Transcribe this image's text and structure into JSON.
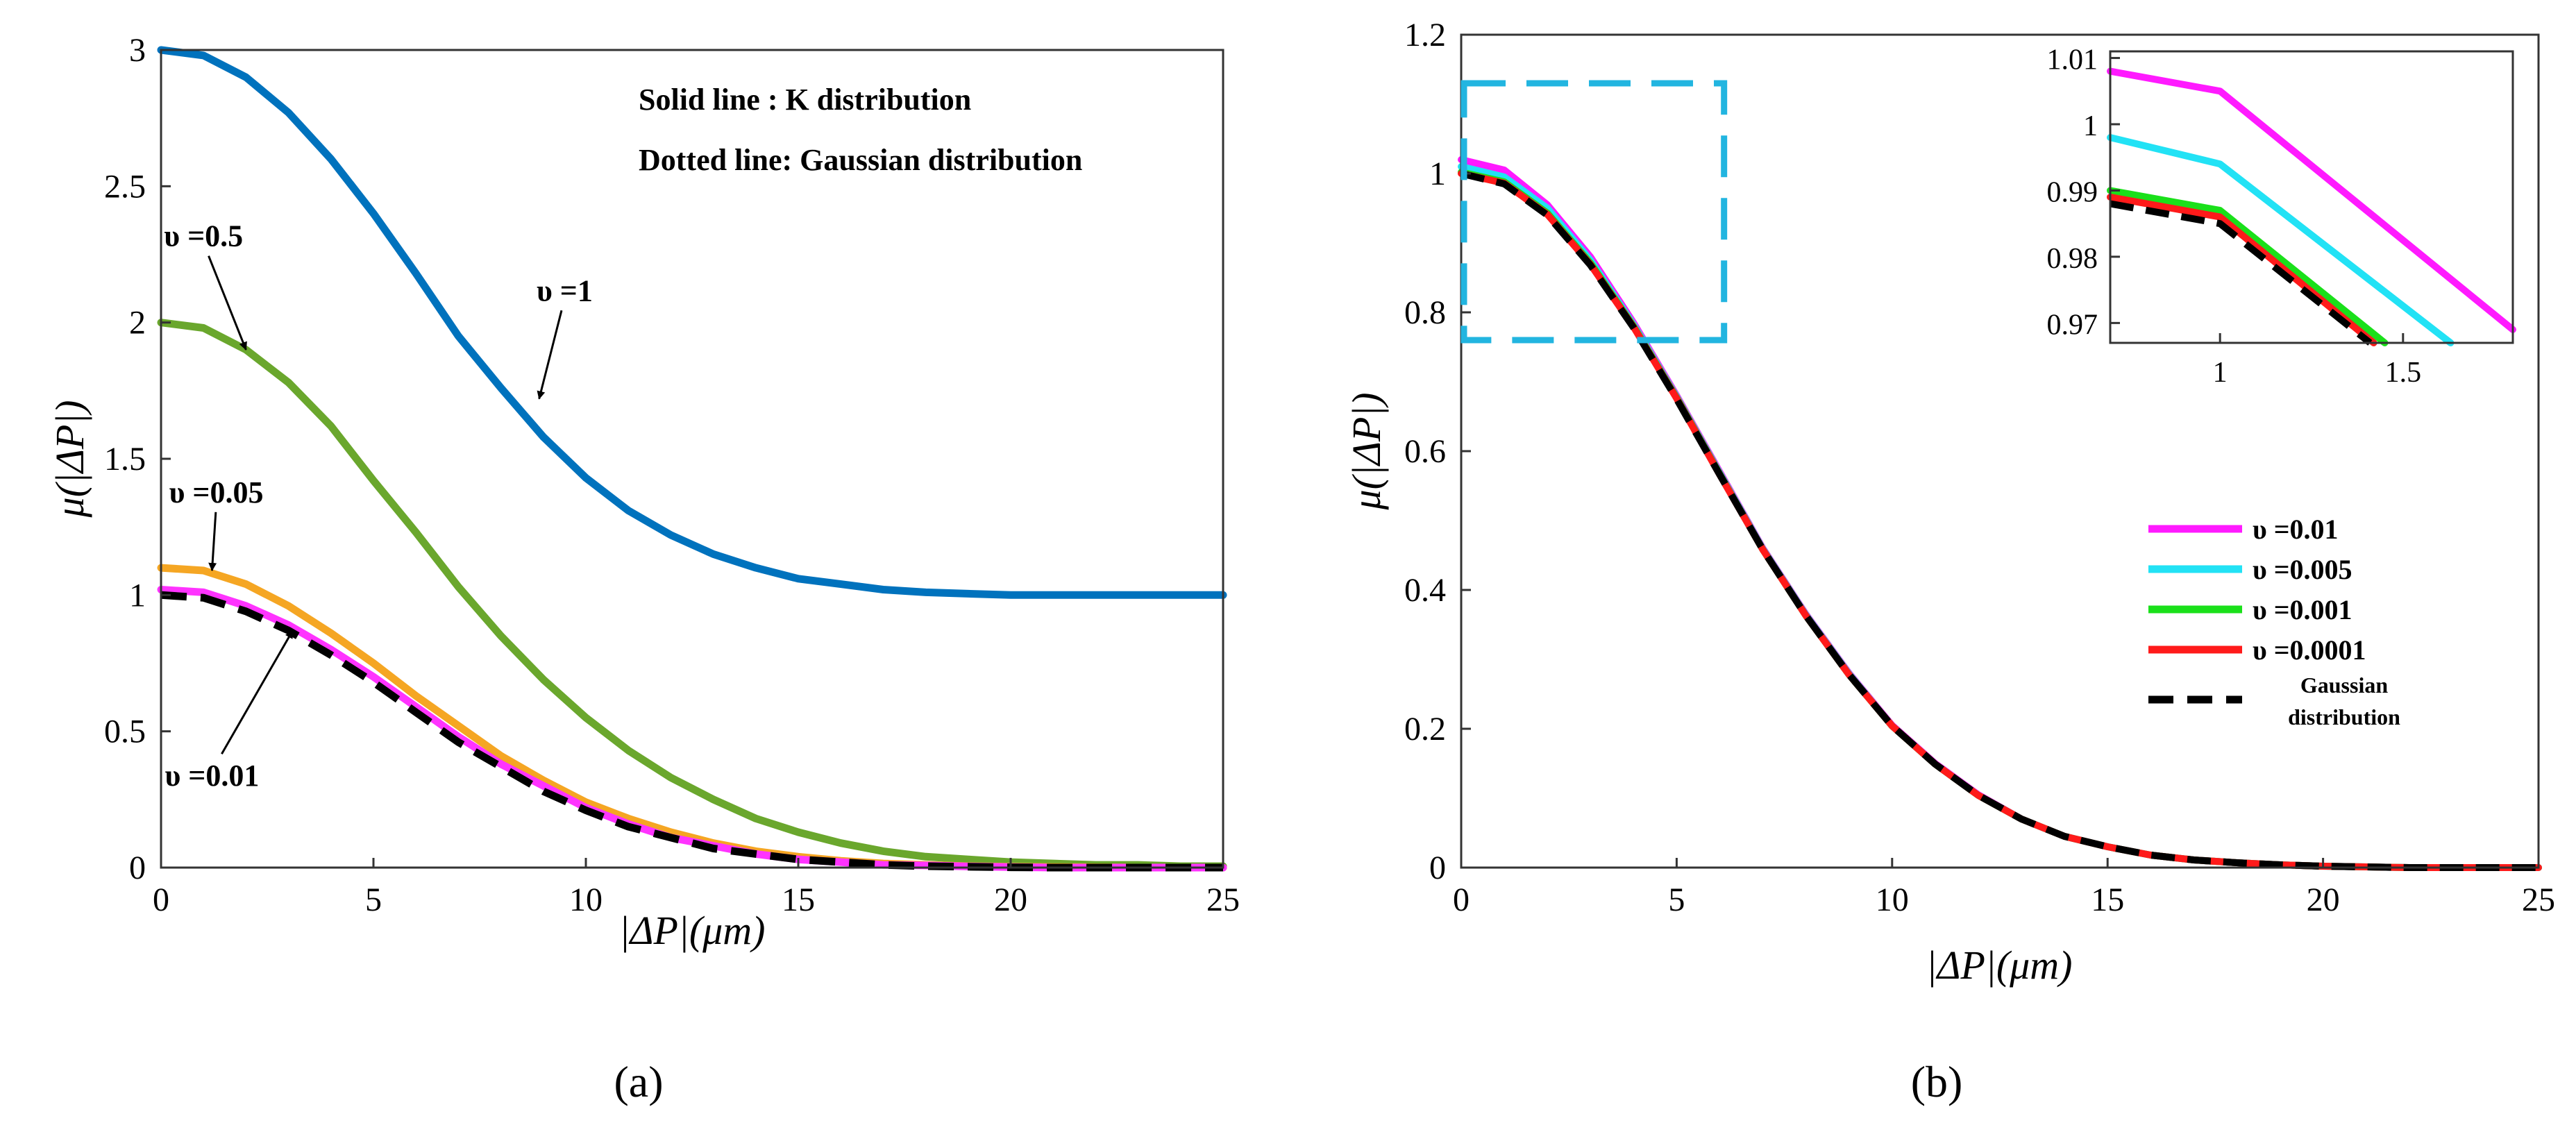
{
  "panel_labels": {
    "a": "(a)",
    "b": "(b)"
  },
  "colors": {
    "nu1": "#0072BD",
    "nu05": "#6AA72D",
    "nu005": "#F5A623",
    "nu001a": "#FF33FF",
    "gauss": "#000000",
    "m001": "#FF1AFF",
    "m0005": "#22E2F5",
    "m0001": "#1AE01A",
    "m00001": "#FF1A1A",
    "zoombox": "#22B5E0"
  },
  "chart_data": [
    {
      "id": "a",
      "type": "line",
      "title": "",
      "xlabel": "|ΔP|(μm)",
      "ylabel": "μ(|ΔP|)",
      "xlim": [
        0,
        25
      ],
      "ylim": [
        0,
        3
      ],
      "xticks": [
        0,
        5,
        10,
        15,
        20,
        25
      ],
      "yticks": [
        0,
        0.5,
        1,
        1.5,
        2,
        2.5,
        3
      ],
      "ytick_labels": [
        "0",
        "0.5",
        "1",
        "1.5",
        "2",
        "2.5",
        "3"
      ],
      "notes": [
        "Solid line : K distribution",
        "Dotted line: Gaussian distribution"
      ],
      "annotations": [
        {
          "text": "υ =1",
          "x": 9.5,
          "y": 2.08,
          "arrow_to": [
            8.9,
            1.72
          ]
        },
        {
          "text": "υ =0.5",
          "x": 1.0,
          "y": 2.28,
          "arrow_to": [
            2.0,
            1.9
          ]
        },
        {
          "text": "υ =0.05",
          "x": 1.3,
          "y": 1.34,
          "arrow_to": [
            1.2,
            1.09
          ]
        },
        {
          "text": "υ =0.01",
          "x": 1.2,
          "y": 0.3,
          "arrow_to": [
            3.1,
            0.87
          ]
        }
      ],
      "series": [
        {
          "name": "υ=1",
          "color_key": "nu1",
          "dashed": false,
          "x": [
            0,
            1,
            2,
            3,
            4,
            5,
            6,
            7,
            8,
            9,
            10,
            11,
            12,
            13,
            14,
            15,
            16,
            17,
            18,
            19,
            20,
            21,
            22,
            23,
            24,
            25
          ],
          "y": [
            3.0,
            2.98,
            2.9,
            2.77,
            2.6,
            2.4,
            2.18,
            1.95,
            1.76,
            1.58,
            1.43,
            1.31,
            1.22,
            1.15,
            1.1,
            1.06,
            1.04,
            1.02,
            1.01,
            1.005,
            1.0,
            1.0,
            1.0,
            1.0,
            1.0,
            1.0
          ]
        },
        {
          "name": "υ=0.5",
          "color_key": "nu05",
          "dashed": false,
          "x": [
            0,
            1,
            2,
            3,
            4,
            5,
            6,
            7,
            8,
            9,
            10,
            11,
            12,
            13,
            14,
            15,
            16,
            17,
            18,
            19,
            20,
            21,
            22,
            23,
            24,
            25
          ],
          "y": [
            2.0,
            1.98,
            1.9,
            1.78,
            1.62,
            1.42,
            1.23,
            1.03,
            0.85,
            0.69,
            0.55,
            0.43,
            0.33,
            0.25,
            0.18,
            0.13,
            0.09,
            0.06,
            0.04,
            0.03,
            0.02,
            0.015,
            0.01,
            0.01,
            0.005,
            0.005
          ]
        },
        {
          "name": "υ=0.05",
          "color_key": "nu005",
          "dashed": false,
          "x": [
            0,
            1,
            2,
            3,
            4,
            5,
            6,
            7,
            8,
            9,
            10,
            11,
            12,
            13,
            14,
            15,
            16,
            17,
            18,
            19,
            20,
            21,
            22,
            23,
            24,
            25
          ],
          "y": [
            1.1,
            1.09,
            1.04,
            0.96,
            0.86,
            0.75,
            0.63,
            0.52,
            0.41,
            0.32,
            0.24,
            0.18,
            0.13,
            0.09,
            0.06,
            0.04,
            0.025,
            0.015,
            0.01,
            0.005,
            0.003,
            0.002,
            0.001,
            0.0,
            0.0,
            0.0
          ]
        },
        {
          "name": "υ=0.01",
          "color_key": "nu001a",
          "dashed": false,
          "x": [
            0,
            1,
            2,
            3,
            4,
            5,
            6,
            7,
            8,
            9,
            10,
            11,
            12,
            13,
            14,
            15,
            16,
            17,
            18,
            19,
            20,
            21,
            22,
            23,
            24,
            25
          ],
          "y": [
            1.02,
            1.01,
            0.96,
            0.89,
            0.8,
            0.7,
            0.59,
            0.48,
            0.38,
            0.3,
            0.22,
            0.16,
            0.11,
            0.08,
            0.05,
            0.03,
            0.02,
            0.01,
            0.008,
            0.004,
            0.002,
            0.0,
            0.0,
            0.0,
            0.0,
            0.0
          ]
        },
        {
          "name": "Gaussian",
          "color_key": "gauss",
          "dashed": true,
          "x": [
            0,
            1,
            2,
            3,
            4,
            5,
            6,
            7,
            8,
            9,
            10,
            11,
            12,
            13,
            14,
            15,
            16,
            17,
            18,
            19,
            20,
            21,
            22,
            23,
            24,
            25
          ],
          "y": [
            1.0,
            0.99,
            0.94,
            0.87,
            0.78,
            0.68,
            0.57,
            0.46,
            0.37,
            0.28,
            0.21,
            0.15,
            0.11,
            0.07,
            0.05,
            0.03,
            0.02,
            0.01,
            0.005,
            0.003,
            0.001,
            0.0,
            0.0,
            0.0,
            0.0,
            0.0
          ]
        }
      ]
    },
    {
      "id": "b",
      "type": "line",
      "title": "",
      "xlabel": "|ΔP|(μm)",
      "ylabel": "μ(|ΔP|)",
      "xlim": [
        0,
        25
      ],
      "ylim": [
        0,
        1.2
      ],
      "xticks": [
        0,
        5,
        10,
        15,
        20,
        25
      ],
      "yticks": [
        0,
        0.2,
        0.4,
        0.6,
        0.8,
        1,
        1.2
      ],
      "ytick_labels": [
        "0",
        "0.2",
        "0.4",
        "0.6",
        "0.8",
        "1",
        "1.2"
      ],
      "zoom_box": {
        "x": [
          0,
          6.1
        ],
        "y": [
          0.76,
          1.13
        ]
      },
      "legend": [
        {
          "label": "υ =0.01",
          "color_key": "m001",
          "dashed": false
        },
        {
          "label": "υ =0.005",
          "color_key": "m0005",
          "dashed": false
        },
        {
          "label": "υ =0.001",
          "color_key": "m0001",
          "dashed": false
        },
        {
          "label": "υ =0.0001",
          "color_key": "m00001",
          "dashed": false
        },
        {
          "label": "Gaussian",
          "label2": "distribution",
          "color_key": "gauss",
          "dashed": true
        }
      ],
      "series": [
        {
          "name": "υ=0.01",
          "color_key": "m001",
          "dashed": false,
          "x": [
            0,
            1,
            2,
            3,
            4,
            5,
            6,
            7,
            8,
            9,
            10,
            11,
            12,
            13,
            14,
            15,
            16,
            17,
            18,
            19,
            20,
            21,
            22,
            23,
            24,
            25
          ],
          "y": [
            1.02,
            1.005,
            0.955,
            0.88,
            0.785,
            0.68,
            0.57,
            0.46,
            0.365,
            0.28,
            0.205,
            0.15,
            0.105,
            0.07,
            0.045,
            0.03,
            0.018,
            0.011,
            0.007,
            0.004,
            0.002,
            0.001,
            0.0,
            0.0,
            0.0,
            0.0
          ]
        },
        {
          "name": "υ=0.005",
          "color_key": "m0005",
          "dashed": false,
          "x": [
            0,
            1,
            2,
            3,
            4,
            5,
            6,
            7,
            8,
            9,
            10,
            11,
            12,
            13,
            14,
            15,
            16,
            17,
            18,
            19,
            20,
            21,
            22,
            23,
            24,
            25
          ],
          "y": [
            1.01,
            0.995,
            0.95,
            0.875,
            0.782,
            0.678,
            0.568,
            0.459,
            0.364,
            0.279,
            0.204,
            0.149,
            0.104,
            0.07,
            0.045,
            0.03,
            0.018,
            0.011,
            0.007,
            0.004,
            0.002,
            0.001,
            0.0,
            0.0,
            0.0,
            0.0
          ]
        },
        {
          "name": "υ=0.001",
          "color_key": "m0001",
          "dashed": false,
          "x": [
            0,
            1,
            2,
            3,
            4,
            5,
            6,
            7,
            8,
            9,
            10,
            11,
            12,
            13,
            14,
            15,
            16,
            17,
            18,
            19,
            20,
            21,
            22,
            23,
            24,
            25
          ],
          "y": [
            1.002,
            0.988,
            0.943,
            0.871,
            0.78,
            0.677,
            0.567,
            0.458,
            0.363,
            0.278,
            0.204,
            0.149,
            0.104,
            0.07,
            0.045,
            0.03,
            0.018,
            0.011,
            0.007,
            0.004,
            0.002,
            0.001,
            0.0,
            0.0,
            0.0,
            0.0
          ]
        },
        {
          "name": "υ=0.0001",
          "color_key": "m00001",
          "dashed": false,
          "x": [
            0,
            1,
            2,
            3,
            4,
            5,
            6,
            7,
            8,
            9,
            10,
            11,
            12,
            13,
            14,
            15,
            16,
            17,
            18,
            19,
            20,
            21,
            22,
            23,
            24,
            25
          ],
          "y": [
            1.0,
            0.986,
            0.941,
            0.869,
            0.779,
            0.676,
            0.566,
            0.458,
            0.363,
            0.278,
            0.204,
            0.149,
            0.104,
            0.07,
            0.045,
            0.03,
            0.018,
            0.011,
            0.007,
            0.004,
            0.002,
            0.001,
            0.0,
            0.0,
            0.0,
            0.0
          ]
        },
        {
          "name": "Gaussian",
          "color_key": "gauss",
          "dashed": true,
          "x": [
            0,
            1,
            2,
            3,
            4,
            5,
            6,
            7,
            8,
            9,
            10,
            11,
            12,
            13,
            14,
            15,
            16,
            17,
            18,
            19,
            20,
            21,
            22,
            23,
            24,
            25
          ],
          "y": [
            1.0,
            0.985,
            0.94,
            0.868,
            0.778,
            0.675,
            0.566,
            0.458,
            0.363,
            0.278,
            0.204,
            0.149,
            0.104,
            0.07,
            0.045,
            0.03,
            0.018,
            0.011,
            0.007,
            0.004,
            0.002,
            0.001,
            0.0,
            0.0,
            0.0,
            0.0
          ]
        }
      ]
    },
    {
      "id": "b-inset",
      "type": "line",
      "xlim": [
        0.7,
        1.8
      ],
      "ylim": [
        0.967,
        1.011
      ],
      "xticks": [
        1,
        1.5
      ],
      "xtick_labels": [
        "1",
        "1.5"
      ],
      "yticks": [
        0.97,
        0.98,
        0.99,
        1,
        1.01
      ],
      "ytick_labels": [
        "0.97",
        "0.98",
        "0.99",
        "1",
        "1.01"
      ],
      "series": [
        {
          "name": "υ=0.01",
          "color_key": "m001",
          "dashed": false,
          "x": [
            0.7,
            1.0,
            1.8
          ],
          "y": [
            1.008,
            1.005,
            0.969
          ]
        },
        {
          "name": "υ=0.005",
          "color_key": "m0005",
          "dashed": false,
          "x": [
            0.7,
            1.0,
            1.63
          ],
          "y": [
            0.998,
            0.994,
            0.967
          ]
        },
        {
          "name": "υ=0.001",
          "color_key": "m0001",
          "dashed": false,
          "x": [
            0.7,
            1.0,
            1.45
          ],
          "y": [
            0.99,
            0.987,
            0.967
          ]
        },
        {
          "name": "υ=0.0001",
          "color_key": "m00001",
          "dashed": false,
          "x": [
            0.7,
            1.0,
            1.42
          ],
          "y": [
            0.989,
            0.986,
            0.967
          ]
        },
        {
          "name": "Gaussian",
          "color_key": "gauss",
          "dashed": true,
          "x": [
            0.7,
            1.0,
            1.41
          ],
          "y": [
            0.988,
            0.985,
            0.967
          ]
        }
      ]
    }
  ]
}
